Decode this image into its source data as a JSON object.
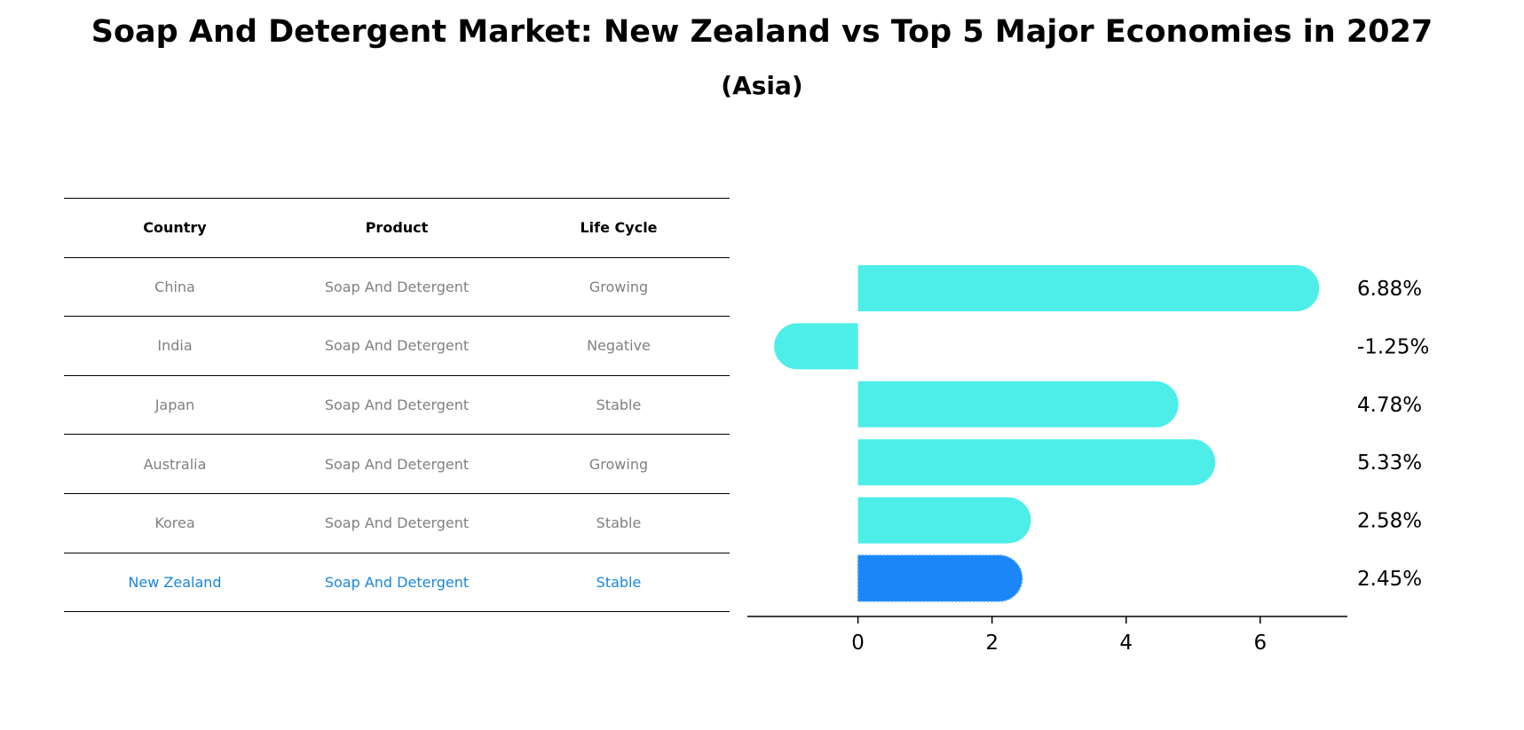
{
  "title": "Soap And Detergent Market: New Zealand vs Top 5 Major Economies in 2027",
  "subtitle": "(Asia)",
  "table": {
    "headers": [
      "Country",
      "Product",
      "Life Cycle"
    ],
    "rows": [
      {
        "country": "China",
        "product": "Soap And Detergent",
        "life_cycle": "Growing"
      },
      {
        "country": "India",
        "product": "Soap And Detergent",
        "life_cycle": "Negative"
      },
      {
        "country": "Japan",
        "product": "Soap And Detergent",
        "life_cycle": "Stable"
      },
      {
        "country": "Australia",
        "product": "Soap And Detergent",
        "life_cycle": "Growing"
      },
      {
        "country": "Korea",
        "product": "Soap And Detergent",
        "life_cycle": "Stable"
      },
      {
        "country": "New Zealand",
        "product": "Soap And Detergent",
        "life_cycle": "Stable"
      }
    ],
    "header_color": "#000000",
    "row_text_color": "#808080",
    "highlight_color": "#1a86d9"
  },
  "chart_data": {
    "type": "bar",
    "orientation": "horizontal",
    "categories": [
      "China",
      "India",
      "Japan",
      "Australia",
      "Korea",
      "New Zealand"
    ],
    "values": [
      6.88,
      -1.25,
      4.78,
      5.33,
      2.58,
      2.45
    ],
    "value_labels": [
      "6.88%",
      "-1.25%",
      "4.78%",
      "5.33%",
      "2.58%",
      "2.45%"
    ],
    "xlim": [
      -1.65,
      7.3
    ],
    "xticks": [
      0,
      2,
      4,
      6
    ],
    "xtick_labels": [
      "0",
      "2",
      "4",
      "6"
    ],
    "bar_color": "#4deee8",
    "highlight_color": "#1a86f7",
    "highlight_index": 5,
    "grid": false,
    "legend": "none"
  }
}
